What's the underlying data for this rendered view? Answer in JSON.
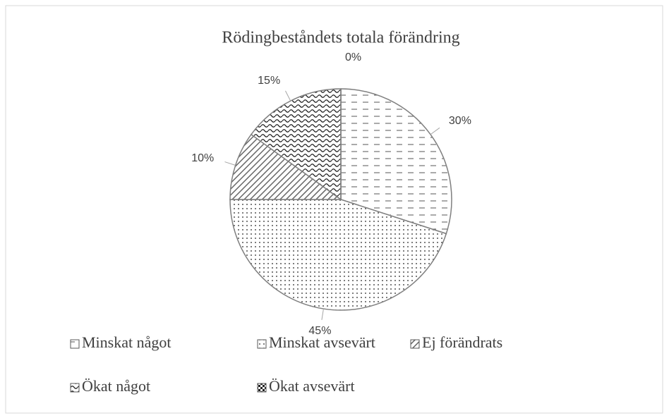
{
  "chart_data": {
    "type": "pie",
    "title": "Rödingbeståndets totala förändring",
    "categories": [
      "Minskat något",
      "Minskat avsevärt",
      "Ej förändrats",
      "Ökat något",
      "Ökat avsevärt"
    ],
    "values": [
      30,
      45,
      10,
      15,
      0
    ],
    "value_labels": [
      "30%",
      "45%",
      "10%",
      "15%",
      "0%"
    ],
    "color": "#404040",
    "legend": "bottom"
  }
}
